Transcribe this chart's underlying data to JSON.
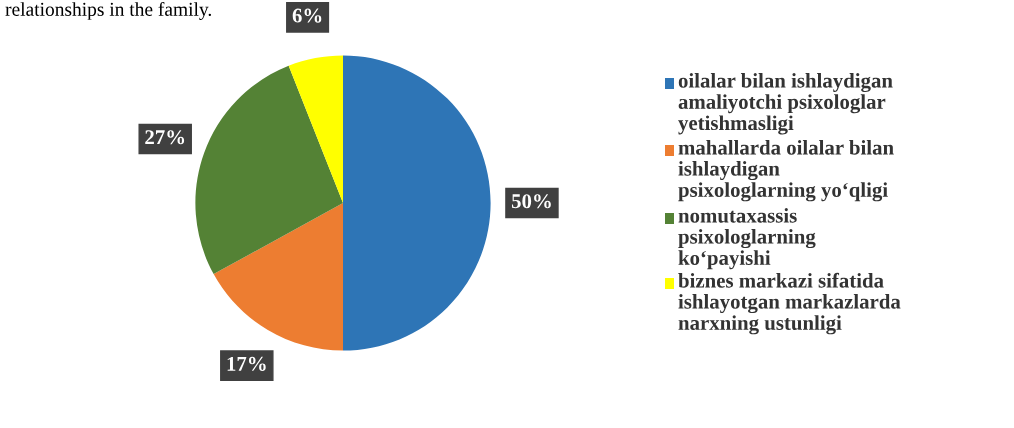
{
  "chart_data": {
    "type": "pie",
    "categories": [
      "oilalar bilan ishlaydigan amaliyotchi psixologlar yetishmasligi",
      "mahallarda oilalar bilan ishlaydigan psixologlarning yo‘qligi",
      "nomutaxassis psixologlarning ko‘payishi",
      "biznes markazi sifatida ishlayotgan markazlarda narxning ustunligi"
    ],
    "values": [
      50,
      17,
      27,
      6
    ],
    "colors": [
      "#2e75b6",
      "#ed7d31",
      "#548235",
      "#ffff00"
    ],
    "value_labels": [
      "50%",
      "17%",
      "27%",
      "6%"
    ],
    "legend": "right",
    "annotations": [
      "relationships in the family."
    ]
  }
}
